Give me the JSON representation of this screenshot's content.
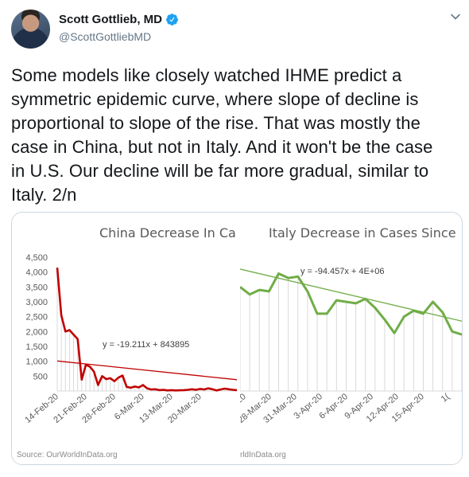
{
  "tweet": {
    "author_name": "Scott Gottlieb, MD",
    "handle": "@ScottGottliebMD",
    "text": "Some models like closely watched IHME predict a symmetric epidemic curve, where slope of decline is proportional to slope of the rise. That was mostly the case in China, but not in Italy. And it won't be the case in U.S. Our decline will be far more gradual, similar to Italy. 2/n",
    "text_lines": [
      "Some models like closely watched IHME predict a",
      "symmetric epidemic curve, where slope of decline is",
      "proportional to slope of the rise. That was mostly the",
      "case in China, but not in Italy. And it won't be the case",
      "in U.S. Our decline will be far more gradual, similar to",
      "Italy. 2/n"
    ]
  },
  "colors": {
    "verified_blue": "#1da1f2",
    "china_line": "#c00000",
    "italy_line": "#70ad47",
    "handle_gray": "#657786"
  },
  "icons": {
    "verified": "verified-badge-icon",
    "menu": "chevron-down-icon"
  },
  "chart_data": [
    {
      "type": "line",
      "title": "China Decrease In Ca",
      "trendline_label": "y = -19.211x + 843895",
      "source": "Source: OurWorldInData.org",
      "ylim": [
        0,
        4500
      ],
      "yticks": [
        "4,500",
        "4,000",
        "3,500",
        "3,000",
        "2,500",
        "2,000",
        "1,500",
        "1,000",
        "500"
      ],
      "ytick_values": [
        4500,
        4000,
        3500,
        3000,
        2500,
        2000,
        1500,
        1000,
        500
      ],
      "xtick_labels": [
        "14-Feb-20",
        "21-Feb-20",
        "28-Feb-20",
        "6-Mar-20",
        "13-Mar-20",
        "20-Mar-20"
      ],
      "x_index_start": 0,
      "n_points": 45,
      "values": [
        4150,
        2550,
        2000,
        2050,
        1900,
        1750,
        380,
        880,
        820,
        650,
        200,
        500,
        400,
        430,
        330,
        450,
        520,
        140,
        110,
        150,
        120,
        200,
        90,
        50,
        60,
        30,
        40,
        20,
        30,
        20,
        25,
        30,
        40,
        60,
        40,
        70,
        50,
        90,
        60,
        20,
        50,
        80,
        60,
        40,
        30
      ],
      "trend": [
        1010,
        380
      ],
      "grid": "vertical"
    },
    {
      "type": "line",
      "title": "Italy Decrease in Cases Since",
      "trendline_label": "y = -94.457x + 4E+06",
      "source": "rldInData.org",
      "xtick_labels": [
        "?-ar-20",
        "28-Mar-20",
        "31-Mar-20",
        "3-Apr-20",
        "6-Apr-20",
        "9-Apr-20",
        "12-Apr-20",
        "15-Apr-20",
        "1("
      ],
      "ylim": [
        0,
        4500
      ],
      "values": [
        3500,
        3250,
        3400,
        3350,
        3950,
        3800,
        3850,
        3350,
        2600,
        2600,
        3050,
        3000,
        2950,
        3100,
        2800,
        2400,
        1950,
        2500,
        2700,
        2600,
        3000,
        2650,
        2000,
        1900
      ],
      "trend": [
        4100,
        2350
      ],
      "grid": "vertical"
    }
  ]
}
